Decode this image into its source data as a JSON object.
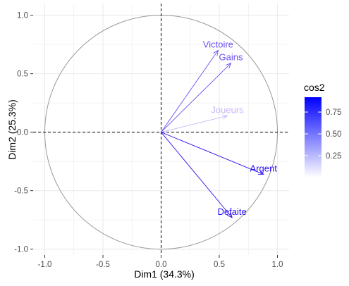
{
  "chart_data": {
    "type": "scatter",
    "subtype": "pca-variable-correlation-circle",
    "title": "",
    "xlabel": "Dim1 (34.3%)",
    "ylabel": "Dim2 (25.3%)",
    "xlim": [
      -1.1,
      1.1
    ],
    "ylim": [
      -1.05,
      1.1
    ],
    "x_ticks": [
      {
        "value": -1.0,
        "label": "-1.0"
      },
      {
        "value": -0.5,
        "label": "-0.5"
      },
      {
        "value": 0.0,
        "label": "0.0"
      },
      {
        "value": 0.5,
        "label": "0.5"
      },
      {
        "value": 1.0,
        "label": "1.0"
      }
    ],
    "y_ticks": [
      {
        "value": -1.0,
        "label": "-1.0"
      },
      {
        "value": -0.5,
        "label": "-0.5"
      },
      {
        "value": 0.0,
        "label": "0.0"
      },
      {
        "value": 0.5,
        "label": "0.5"
      },
      {
        "value": 1.0,
        "label": "1.0"
      }
    ],
    "grid": true,
    "unit_circle": true,
    "variables": [
      {
        "name": "Victoire",
        "x": 0.49,
        "y": 0.7,
        "cos2": 0.73,
        "color": "#6a51f4"
      },
      {
        "name": "Gains",
        "x": 0.6,
        "y": 0.59,
        "cos2": 0.71,
        "color": "#6a51f4"
      },
      {
        "name": "Joueurs",
        "x": 0.57,
        "y": 0.14,
        "cos2": 0.34,
        "color": "#c7b6f7"
      },
      {
        "name": "Argent",
        "x": 0.88,
        "y": -0.36,
        "cos2": 0.9,
        "color": "#2b11f1"
      },
      {
        "name": "Defaite",
        "x": 0.61,
        "y": -0.73,
        "cos2": 0.91,
        "color": "#2b11f1"
      }
    ],
    "legend": {
      "title": "cos2",
      "position": "right",
      "ticks": [
        {
          "value": 0.75,
          "label": "0.75"
        },
        {
          "value": 0.5,
          "label": "0.50"
        },
        {
          "value": 0.25,
          "label": "0.25"
        }
      ],
      "range": [
        0.0,
        0.92
      ],
      "color_low": "#ffffff",
      "color_high": "#0000ff"
    },
    "colors": {
      "panel_background": "#ffffff",
      "grid": "#ebebeb",
      "circle": "#999999",
      "axis_lines": "#000000",
      "tick_text": "#4d4d4d"
    }
  }
}
